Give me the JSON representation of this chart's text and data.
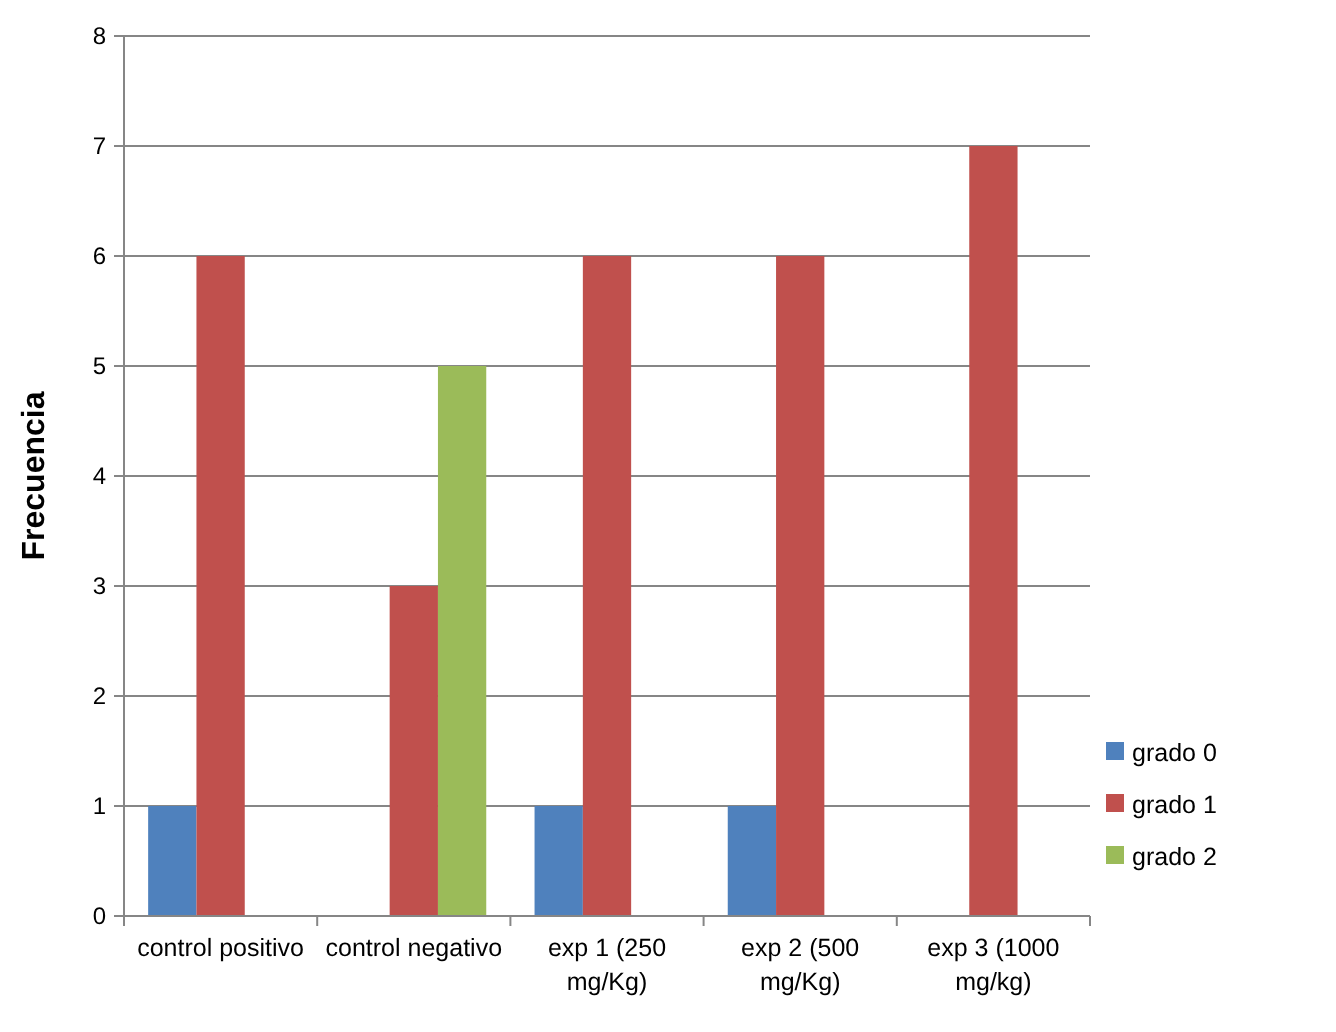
{
  "chart_data": {
    "type": "bar",
    "ylabel": "Frecuencia",
    "categories": [
      "control positivo",
      "control negativo",
      "exp 1 (250 mg/Kg)",
      "exp 2 (500 mg/Kg)",
      "exp 3 (1000 mg/kg)"
    ],
    "series": [
      {
        "name": "grado 0",
        "color": "#4f81bd",
        "values": [
          1,
          0,
          1,
          1,
          0
        ]
      },
      {
        "name": "grado 1",
        "color": "#c0504d",
        "values": [
          6,
          3,
          6,
          6,
          7
        ]
      },
      {
        "name": "grado 2",
        "color": "#9bbb59",
        "values": [
          0,
          5,
          0,
          0,
          0
        ]
      }
    ],
    "ylim": [
      0,
      8
    ],
    "yticks": [
      0,
      1,
      2,
      3,
      4,
      5,
      6,
      7,
      8
    ],
    "grid": "y",
    "legend": "right"
  }
}
